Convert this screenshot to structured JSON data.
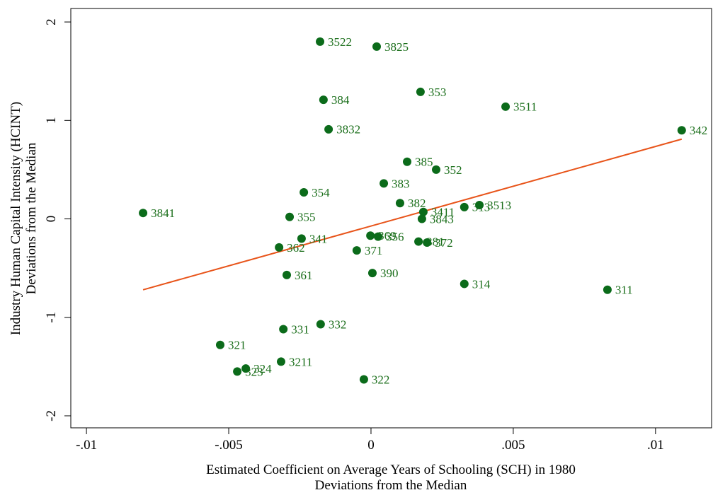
{
  "chart_data": {
    "type": "scatter",
    "x_label": [
      "Estimated Coefficient on Average Years of Schooling (SCH) in 1980",
      "Deviations from the Median"
    ],
    "y_label": [
      "Industry Human Capital Intensity (HCINT)",
      "Deviations from the Median"
    ],
    "color": "#0b6b1a",
    "label_color": "#1a6e1a",
    "xlim": [
      -0.01055,
      0.01197
    ],
    "ylim": [
      -2.122,
      2.137
    ],
    "xticks": [
      {
        "value": -0.01,
        "label": "-.01"
      },
      {
        "value": -0.005,
        "label": "-.005"
      },
      {
        "value": 0,
        "label": "0"
      },
      {
        "value": 0.005,
        "label": ".005"
      },
      {
        "value": 0.01,
        "label": ".01"
      }
    ],
    "yticks": [
      -2,
      -1,
      0,
      1,
      2
    ],
    "labels": [
      "3522",
      "3825",
      "353",
      "384",
      "3511",
      "3832",
      "342",
      "385",
      "352",
      "383",
      "354",
      "382",
      "3841",
      "3411",
      "313",
      "3513",
      "355",
      "3843",
      "369",
      "356",
      "341",
      "381",
      "372",
      "362",
      "371",
      "361",
      "390",
      "314",
      "311",
      "332",
      "331",
      "321",
      "3211",
      "324",
      "323",
      "322"
    ],
    "x": [
      -0.00179,
      0.0002,
      0.00174,
      -0.00167,
      0.00473,
      -0.00149,
      0.01092,
      0.00127,
      0.00229,
      0.00045,
      -0.00236,
      0.00102,
      -0.00801,
      0.00184,
      0.00328,
      0.00381,
      -0.00286,
      0.00179,
      -2e-05,
      0.00025,
      -0.00244,
      0.00167,
      0.00197,
      -0.00323,
      -0.0005,
      -0.00296,
      5e-05,
      0.00328,
      0.00831,
      -0.00177,
      -0.00308,
      -0.0053,
      -0.00316,
      -0.0044,
      -0.0047,
      -0.00025
    ],
    "y": [
      1.8,
      1.75,
      1.29,
      1.21,
      1.14,
      0.91,
      0.9,
      0.58,
      0.5,
      0.36,
      0.27,
      0.16,
      0.06,
      0.07,
      0.12,
      0.14,
      0.02,
      0.0,
      -0.17,
      -0.18,
      -0.2,
      -0.23,
      -0.24,
      -0.29,
      -0.32,
      -0.57,
      -0.55,
      -0.66,
      -0.72,
      -1.07,
      -1.12,
      -1.28,
      -1.45,
      -1.52,
      -1.55,
      -1.63
    ],
    "fit_line": {
      "x": [
        -0.00801,
        0.01092
      ],
      "y": [
        -0.72,
        0.81
      ],
      "color": "#e8541a"
    }
  }
}
